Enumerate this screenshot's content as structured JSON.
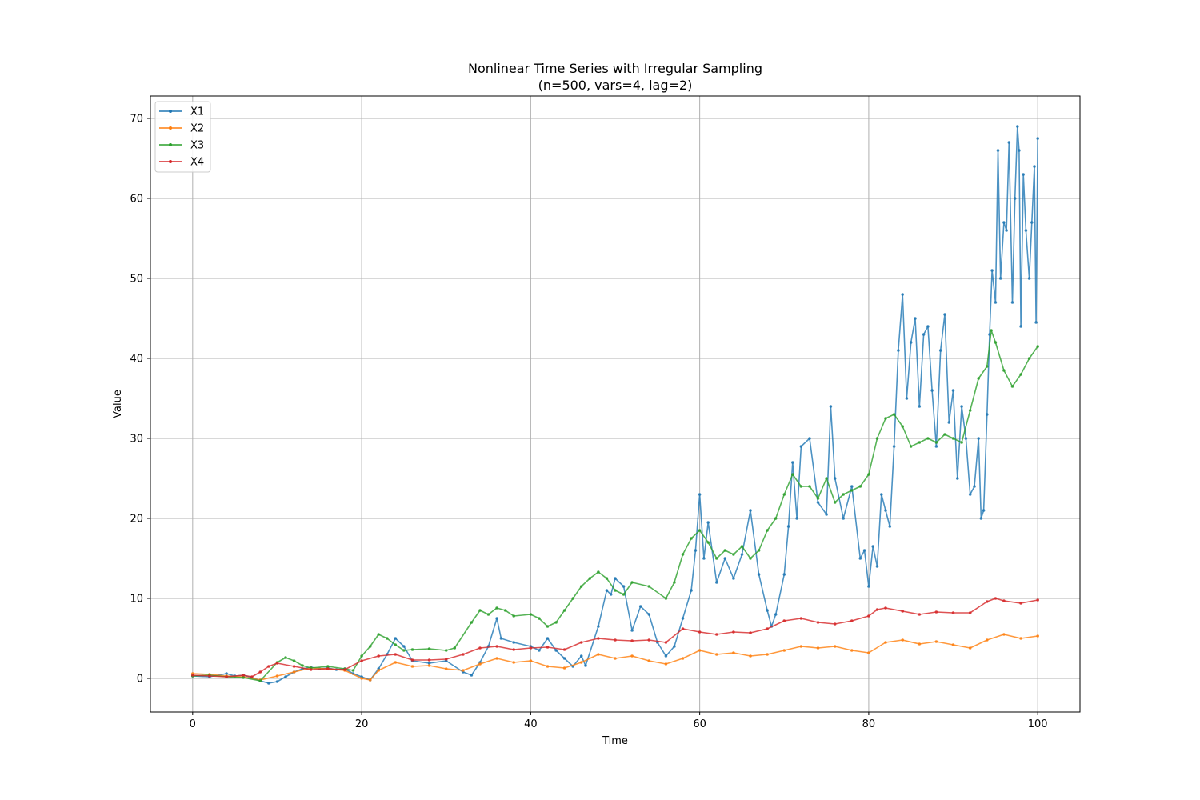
{
  "chart_data": {
    "type": "line",
    "title": "Nonlinear Time Series with Irregular Sampling",
    "subtitle": "(n=500, vars=4, lag=2)",
    "xlabel": "Time",
    "ylabel": "Value",
    "xlim": [
      -5,
      105
    ],
    "ylim": [
      -4.2,
      72.8
    ],
    "xticks": [
      0,
      20,
      40,
      60,
      80,
      100
    ],
    "yticks": [
      0,
      10,
      20,
      30,
      40,
      50,
      60,
      70
    ],
    "grid": true,
    "legend": "upper-left",
    "series": [
      {
        "name": "X1",
        "color": "#1f77b4",
        "points": [
          [
            0,
            0.3
          ],
          [
            2,
            0.2
          ],
          [
            4,
            0.6
          ],
          [
            5,
            0.3
          ],
          [
            6,
            0.4
          ],
          [
            7,
            0.1
          ],
          [
            8,
            -0.3
          ],
          [
            9,
            -0.6
          ],
          [
            10,
            -0.4
          ],
          [
            11,
            0.2
          ],
          [
            12,
            0.8
          ],
          [
            13,
            1.2
          ],
          [
            14,
            1.4
          ],
          [
            15,
            1.2
          ],
          [
            16,
            1.3
          ],
          [
            17,
            1.1
          ],
          [
            18,
            1.2
          ],
          [
            19,
            0.6
          ],
          [
            20,
            0.2
          ],
          [
            21,
            -0.2
          ],
          [
            22,
            1.2
          ],
          [
            23,
            3.0
          ],
          [
            24,
            5.0
          ],
          [
            25,
            4.0
          ],
          [
            26,
            2.2
          ],
          [
            28,
            1.9
          ],
          [
            30,
            2.2
          ],
          [
            32,
            0.8
          ],
          [
            33,
            0.4
          ],
          [
            34,
            2.0
          ],
          [
            35,
            4.0
          ],
          [
            36,
            7.5
          ],
          [
            36.5,
            5.0
          ],
          [
            38,
            4.5
          ],
          [
            40,
            4.0
          ],
          [
            41,
            3.5
          ],
          [
            42,
            5.0
          ],
          [
            43,
            3.5
          ],
          [
            44,
            2.5
          ],
          [
            45,
            1.5
          ],
          [
            46,
            2.8
          ],
          [
            46.5,
            1.6
          ],
          [
            48,
            6.5
          ],
          [
            49,
            11.0
          ],
          [
            49.5,
            10.5
          ],
          [
            50,
            12.5
          ],
          [
            51,
            11.5
          ],
          [
            52,
            6.0
          ],
          [
            53,
            9.0
          ],
          [
            54,
            8.0
          ],
          [
            55,
            4.5
          ],
          [
            56,
            2.8
          ],
          [
            57,
            4.0
          ],
          [
            58,
            7.5
          ],
          [
            59,
            11.0
          ],
          [
            59.5,
            16.0
          ],
          [
            60,
            23.0
          ],
          [
            60.5,
            15.0
          ],
          [
            61,
            19.5
          ],
          [
            62,
            12.0
          ],
          [
            63,
            15.0
          ],
          [
            64,
            12.5
          ],
          [
            65,
            15.5
          ],
          [
            66,
            21.0
          ],
          [
            67,
            13.0
          ],
          [
            68,
            8.5
          ],
          [
            68.5,
            6.5
          ],
          [
            69,
            8.0
          ],
          [
            70,
            13.0
          ],
          [
            70.5,
            19.0
          ],
          [
            71,
            27.0
          ],
          [
            71.5,
            20.0
          ],
          [
            72,
            29.0
          ],
          [
            73,
            30.0
          ],
          [
            74,
            22.0
          ],
          [
            75,
            20.5
          ],
          [
            75.5,
            34.0
          ],
          [
            76,
            25.0
          ],
          [
            77,
            20.0
          ],
          [
            78,
            24.0
          ],
          [
            79,
            15.0
          ],
          [
            79.5,
            16.0
          ],
          [
            80,
            11.5
          ],
          [
            80.5,
            16.5
          ],
          [
            81,
            14.0
          ],
          [
            81.5,
            23.0
          ],
          [
            82,
            21.0
          ],
          [
            82.5,
            19.0
          ],
          [
            83,
            29.0
          ],
          [
            83.5,
            41.0
          ],
          [
            84,
            48.0
          ],
          [
            84.5,
            35.0
          ],
          [
            85,
            42.0
          ],
          [
            85.5,
            45.0
          ],
          [
            86,
            34.0
          ],
          [
            86.5,
            43.0
          ],
          [
            87,
            44.0
          ],
          [
            87.5,
            36.0
          ],
          [
            88,
            29.0
          ],
          [
            88.5,
            41.0
          ],
          [
            89,
            45.5
          ],
          [
            89.5,
            32.0
          ],
          [
            90,
            36.0
          ],
          [
            90.5,
            25.0
          ],
          [
            91,
            34.0
          ],
          [
            91.5,
            30.0
          ],
          [
            92,
            23.0
          ],
          [
            92.5,
            24.0
          ],
          [
            93,
            30.0
          ],
          [
            93.3,
            20.0
          ],
          [
            93.6,
            21.0
          ],
          [
            94,
            33.0
          ],
          [
            94.3,
            43.0
          ],
          [
            94.6,
            51.0
          ],
          [
            95,
            47.0
          ],
          [
            95.3,
            66.0
          ],
          [
            95.6,
            50.0
          ],
          [
            96,
            57.0
          ],
          [
            96.3,
            56.0
          ],
          [
            96.6,
            67.0
          ],
          [
            97,
            47.0
          ],
          [
            97.3,
            60.0
          ],
          [
            97.6,
            69.0
          ],
          [
            97.8,
            66.0
          ],
          [
            98,
            44.0
          ],
          [
            98.3,
            63.0
          ],
          [
            98.6,
            56.0
          ],
          [
            99,
            50.0
          ],
          [
            99.3,
            57.0
          ],
          [
            99.6,
            64.0
          ],
          [
            99.8,
            44.5
          ],
          [
            100,
            67.5
          ]
        ]
      },
      {
        "name": "X2",
        "color": "#ff7f0e",
        "points": [
          [
            0,
            0.6
          ],
          [
            2,
            0.5
          ],
          [
            4,
            0.3
          ],
          [
            6,
            0.2
          ],
          [
            8,
            -0.2
          ],
          [
            10,
            0.3
          ],
          [
            12,
            0.8
          ],
          [
            14,
            1.3
          ],
          [
            16,
            1.2
          ],
          [
            18,
            1.0
          ],
          [
            20,
            0.0
          ],
          [
            21,
            -0.2
          ],
          [
            22,
            1.0
          ],
          [
            24,
            2.0
          ],
          [
            26,
            1.5
          ],
          [
            28,
            1.6
          ],
          [
            30,
            1.2
          ],
          [
            32,
            1.0
          ],
          [
            34,
            1.8
          ],
          [
            36,
            2.5
          ],
          [
            38,
            2.0
          ],
          [
            40,
            2.2
          ],
          [
            42,
            1.5
          ],
          [
            44,
            1.3
          ],
          [
            46,
            2.0
          ],
          [
            48,
            3.0
          ],
          [
            50,
            2.5
          ],
          [
            52,
            2.8
          ],
          [
            54,
            2.2
          ],
          [
            56,
            1.8
          ],
          [
            58,
            2.5
          ],
          [
            60,
            3.5
          ],
          [
            62,
            3.0
          ],
          [
            64,
            3.2
          ],
          [
            66,
            2.8
          ],
          [
            68,
            3.0
          ],
          [
            70,
            3.5
          ],
          [
            72,
            4.0
          ],
          [
            74,
            3.8
          ],
          [
            76,
            4.0
          ],
          [
            78,
            3.5
          ],
          [
            80,
            3.2
          ],
          [
            82,
            4.5
          ],
          [
            84,
            4.8
          ],
          [
            86,
            4.3
          ],
          [
            88,
            4.6
          ],
          [
            90,
            4.2
          ],
          [
            92,
            3.8
          ],
          [
            94,
            4.8
          ],
          [
            96,
            5.5
          ],
          [
            98,
            5.0
          ],
          [
            100,
            5.3
          ]
        ]
      },
      {
        "name": "X3",
        "color": "#2ca02c",
        "points": [
          [
            0,
            0.3
          ],
          [
            2,
            0.4
          ],
          [
            4,
            0.2
          ],
          [
            6,
            0.1
          ],
          [
            8,
            -0.3
          ],
          [
            10,
            2.0
          ],
          [
            11,
            2.6
          ],
          [
            12,
            2.2
          ],
          [
            13,
            1.6
          ],
          [
            14,
            1.3
          ],
          [
            16,
            1.5
          ],
          [
            18,
            1.2
          ],
          [
            19,
            1.0
          ],
          [
            20,
            2.8
          ],
          [
            21,
            4.0
          ],
          [
            22,
            5.5
          ],
          [
            23,
            5.0
          ],
          [
            24,
            4.2
          ],
          [
            25,
            3.5
          ],
          [
            26,
            3.6
          ],
          [
            28,
            3.7
          ],
          [
            30,
            3.5
          ],
          [
            31,
            3.8
          ],
          [
            33,
            7.0
          ],
          [
            34,
            8.5
          ],
          [
            35,
            8.0
          ],
          [
            36,
            8.8
          ],
          [
            37,
            8.5
          ],
          [
            38,
            7.8
          ],
          [
            40,
            8.0
          ],
          [
            41,
            7.5
          ],
          [
            42,
            6.5
          ],
          [
            43,
            7.0
          ],
          [
            44,
            8.5
          ],
          [
            45,
            10.0
          ],
          [
            46,
            11.5
          ],
          [
            47,
            12.5
          ],
          [
            48,
            13.3
          ],
          [
            49,
            12.5
          ],
          [
            50,
            11.0
          ],
          [
            51,
            10.5
          ],
          [
            52,
            12.0
          ],
          [
            54,
            11.5
          ],
          [
            56,
            10.0
          ],
          [
            57,
            12.0
          ],
          [
            58,
            15.5
          ],
          [
            59,
            17.5
          ],
          [
            60,
            18.5
          ],
          [
            61,
            17.0
          ],
          [
            62,
            15.0
          ],
          [
            63,
            16.0
          ],
          [
            64,
            15.5
          ],
          [
            65,
            16.5
          ],
          [
            66,
            15.0
          ],
          [
            67,
            16.0
          ],
          [
            68,
            18.5
          ],
          [
            69,
            20.0
          ],
          [
            70,
            23.0
          ],
          [
            71,
            25.5
          ],
          [
            72,
            24.0
          ],
          [
            73,
            24.0
          ],
          [
            74,
            22.5
          ],
          [
            75,
            25.0
          ],
          [
            76,
            22.0
          ],
          [
            77,
            23.0
          ],
          [
            78,
            23.5
          ],
          [
            79,
            24.0
          ],
          [
            80,
            25.5
          ],
          [
            81,
            30.0
          ],
          [
            82,
            32.5
          ],
          [
            83,
            33.0
          ],
          [
            84,
            31.5
          ],
          [
            85,
            29.0
          ],
          [
            86,
            29.5
          ],
          [
            87,
            30.0
          ],
          [
            88,
            29.5
          ],
          [
            89,
            30.5
          ],
          [
            90,
            30.0
          ],
          [
            91,
            29.5
          ],
          [
            92,
            33.5
          ],
          [
            93,
            37.5
          ],
          [
            94,
            39.0
          ],
          [
            94.5,
            43.5
          ],
          [
            95,
            42.0
          ],
          [
            96,
            38.5
          ],
          [
            97,
            36.5
          ],
          [
            98,
            38.0
          ],
          [
            99,
            40.0
          ],
          [
            100,
            41.5
          ]
        ]
      },
      {
        "name": "X4",
        "color": "#d62728",
        "points": [
          [
            0,
            0.4
          ],
          [
            2,
            0.3
          ],
          [
            4,
            0.2
          ],
          [
            6,
            0.4
          ],
          [
            7,
            0.2
          ],
          [
            8,
            0.8
          ],
          [
            9,
            1.5
          ],
          [
            10,
            1.9
          ],
          [
            12,
            1.5
          ],
          [
            14,
            1.1
          ],
          [
            16,
            1.2
          ],
          [
            18,
            1.1
          ],
          [
            20,
            2.2
          ],
          [
            22,
            2.8
          ],
          [
            24,
            3.0
          ],
          [
            26,
            2.3
          ],
          [
            28,
            2.3
          ],
          [
            30,
            2.4
          ],
          [
            32,
            3.0
          ],
          [
            34,
            3.8
          ],
          [
            36,
            4.0
          ],
          [
            38,
            3.6
          ],
          [
            40,
            3.8
          ],
          [
            42,
            3.9
          ],
          [
            44,
            3.6
          ],
          [
            46,
            4.5
          ],
          [
            48,
            5.0
          ],
          [
            50,
            4.8
          ],
          [
            52,
            4.7
          ],
          [
            54,
            4.8
          ],
          [
            56,
            4.5
          ],
          [
            58,
            6.2
          ],
          [
            60,
            5.8
          ],
          [
            62,
            5.5
          ],
          [
            64,
            5.8
          ],
          [
            66,
            5.7
          ],
          [
            68,
            6.2
          ],
          [
            70,
            7.2
          ],
          [
            72,
            7.5
          ],
          [
            74,
            7.0
          ],
          [
            76,
            6.8
          ],
          [
            78,
            7.2
          ],
          [
            80,
            7.8
          ],
          [
            81,
            8.6
          ],
          [
            82,
            8.8
          ],
          [
            84,
            8.4
          ],
          [
            86,
            8.0
          ],
          [
            88,
            8.3
          ],
          [
            90,
            8.2
          ],
          [
            92,
            8.2
          ],
          [
            94,
            9.6
          ],
          [
            95,
            10.0
          ],
          [
            96,
            9.7
          ],
          [
            98,
            9.4
          ],
          [
            100,
            9.8
          ]
        ]
      }
    ]
  }
}
